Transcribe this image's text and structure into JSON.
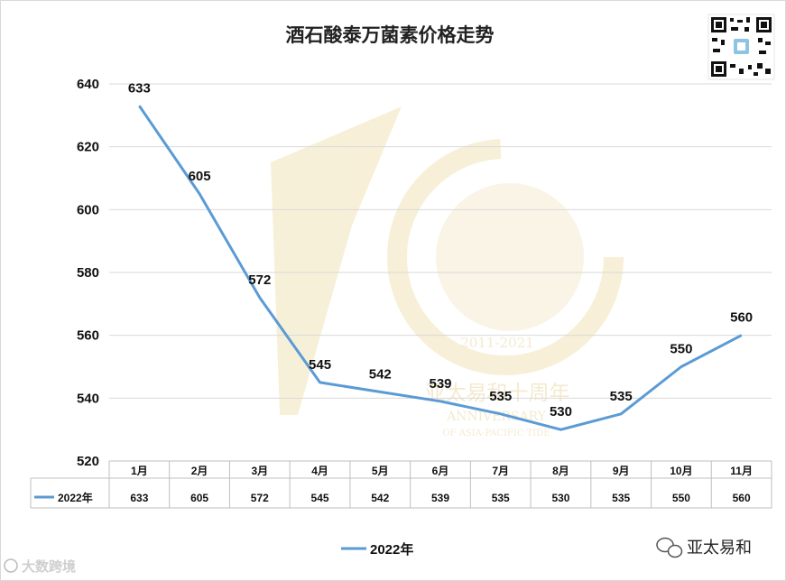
{
  "chart_data": {
    "type": "line",
    "title": "酒石酸泰万菌素价格走势",
    "categories": [
      "1月",
      "2月",
      "3月",
      "4月",
      "5月",
      "6月",
      "7月",
      "8月",
      "9月",
      "10月",
      "11月"
    ],
    "series": [
      {
        "name": "2022年",
        "values": [
          633,
          605,
          572,
          545,
          542,
          539,
          535,
          530,
          535,
          550,
          560
        ],
        "color": "#5b9bd5"
      }
    ],
    "ylim": [
      520,
      640
    ],
    "yticks": [
      520,
      540,
      560,
      580,
      600,
      620,
      640
    ],
    "grid": true,
    "data_table": true,
    "legend_position": "bottom"
  },
  "watermark": {
    "years": "2011-2021",
    "cn": "亚太易和十周年",
    "en1": "ANNIVERSARY",
    "en2": "OF ASIA-PACIFIC TIDE"
  },
  "footer": {
    "left_brand": "大数跨境",
    "right_brand": "亚太易和"
  },
  "icons": {
    "qr": "qr-code-icon",
    "wechat": "wechat-icon",
    "brand": "brand-logo-icon"
  }
}
